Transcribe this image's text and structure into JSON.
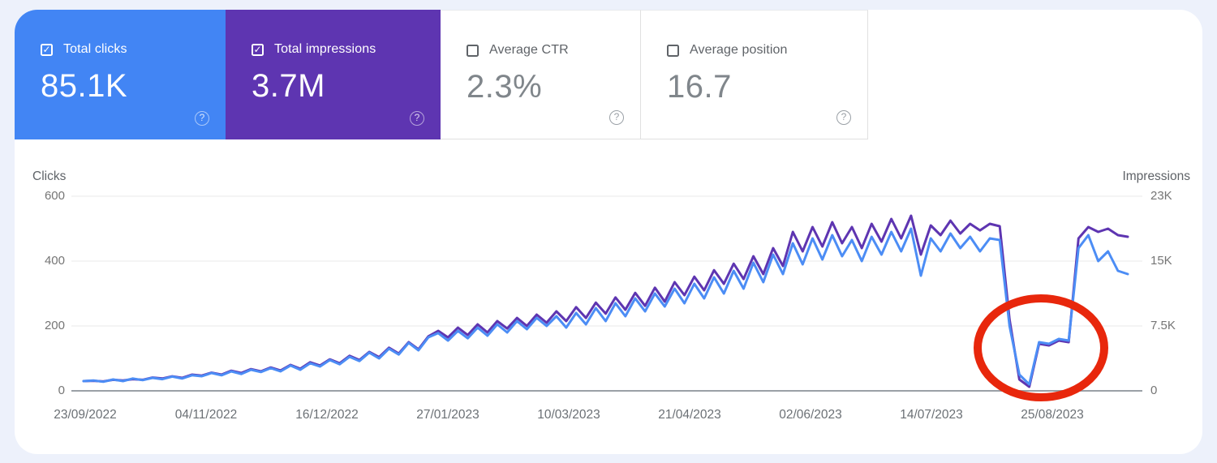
{
  "app": "Search Console performance report",
  "cards": [
    {
      "label": "Total clicks",
      "value": "85.1K",
      "checked": true,
      "bg": "#4285f4"
    },
    {
      "label": "Total impressions",
      "value": "3.7M",
      "checked": true,
      "bg": "#5e35b1"
    },
    {
      "label": "Average CTR",
      "value": "2.3%",
      "checked": false,
      "bg": "#ffffff"
    },
    {
      "label": "Average position",
      "value": "16.7",
      "checked": false,
      "bg": "#ffffff"
    }
  ],
  "glyphs": {
    "check": "✓",
    "help": "?"
  },
  "colors": {
    "clicks_line": "#4c8df5",
    "impressions_line": "#5e35b1",
    "annotation_red": "#e8270c",
    "grid": "#e8e8e8",
    "axis_line": "#9aa0a6",
    "page_bg": "#edf1fb"
  },
  "chart_data": {
    "type": "line",
    "title": "Clicks and impressions over time with circled traffic drop",
    "left_axis": {
      "title": "Clicks",
      "ticks": [
        "600",
        "400",
        "200",
        "0"
      ],
      "range": [
        0,
        600
      ]
    },
    "right_axis": {
      "title": "Impressions",
      "ticks": [
        "23K",
        "15K",
        "7.5K",
        "0"
      ],
      "range": [
        0,
        23000
      ]
    },
    "x_labels": [
      "23/09/2022",
      "04/11/2022",
      "16/12/2022",
      "27/01/2023",
      "10/03/2023",
      "21/04/2023",
      "02/06/2023",
      "14/07/2023",
      "25/08/2023"
    ],
    "grid": true,
    "legend_position": "none",
    "series": [
      {
        "name": "Impressions",
        "axis": "right",
        "color": "#5e35b1",
        "values": [
          1150,
          1190,
          1110,
          1300,
          1230,
          1380,
          1300,
          1570,
          1460,
          1720,
          1530,
          1920,
          1800,
          2150,
          1920,
          2380,
          2110,
          2570,
          2300,
          2760,
          2410,
          3070,
          2610,
          3370,
          2990,
          3720,
          3260,
          4140,
          3640,
          4600,
          3990,
          5100,
          4410,
          5750,
          4910,
          6440,
          7090,
          6320,
          7470,
          6590,
          7860,
          6900,
          8240,
          7360,
          8620,
          7670,
          9010,
          8050,
          9390,
          8240,
          9890,
          8620,
          10430,
          9120,
          11040,
          9580,
          11580,
          10040,
          12190,
          10540,
          12840,
          11310,
          13490,
          11880,
          14260,
          12650,
          15030,
          13220,
          15910,
          13800,
          16870,
          14760,
          18780,
          16480,
          19360,
          17060,
          19930,
          17440,
          19360,
          16870,
          19740,
          17630,
          20320,
          18020,
          20700,
          16100,
          19550,
          18400,
          20120,
          18590,
          19740,
          18970,
          19740,
          19450,
          8430,
          1340,
          480,
          5560,
          5370,
          5940,
          5750,
          18020,
          19360,
          18780,
          19170,
          18400,
          18210
        ]
      },
      {
        "name": "Clicks",
        "axis": "left",
        "color": "#4c8df5",
        "values": [
          30,
          32,
          28,
          35,
          30,
          38,
          33,
          40,
          36,
          44,
          38,
          48,
          45,
          55,
          48,
          60,
          52,
          65,
          58,
          70,
          60,
          78,
          65,
          85,
          75,
          95,
          82,
          105,
          92,
          118,
          100,
          130,
          112,
          148,
          125,
          165,
          178,
          155,
          185,
          162,
          195,
          170,
          205,
          180,
          215,
          190,
          225,
          200,
          230,
          195,
          240,
          205,
          255,
          215,
          270,
          230,
          285,
          245,
          300,
          260,
          315,
          270,
          330,
          285,
          350,
          300,
          370,
          315,
          395,
          335,
          420,
          360,
          455,
          390,
          470,
          405,
          480,
          415,
          465,
          400,
          475,
          420,
          490,
          430,
          500,
          355,
          470,
          430,
          485,
          440,
          475,
          430,
          470,
          465,
          200,
          50,
          20,
          150,
          145,
          160,
          155,
          440,
          480,
          400,
          430,
          370,
          360
        ]
      }
    ],
    "annotation": {
      "shape": "ellipse",
      "color": "#e8270c",
      "meaning": "highlights traffic drop around 25/08/2023"
    }
  }
}
